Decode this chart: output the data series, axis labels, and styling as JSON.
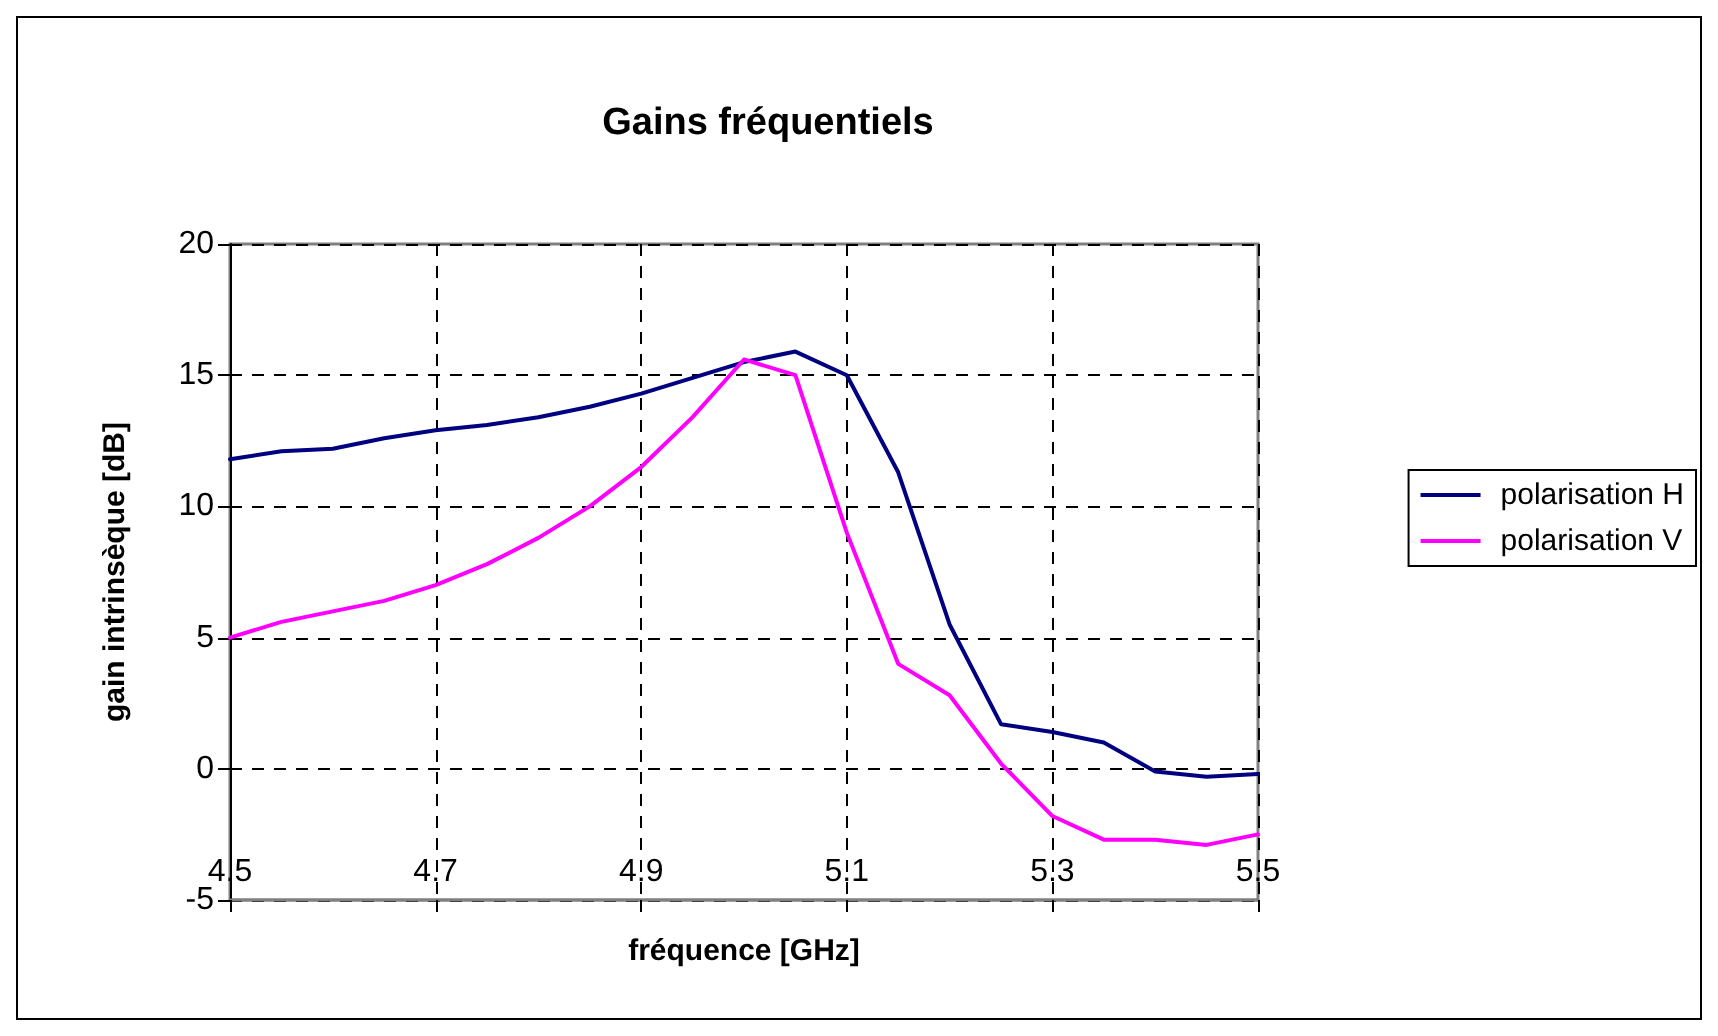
{
  "chart_data": {
    "type": "line",
    "title": "Gains fréquentiels",
    "xlabel": "fréquence [GHz]",
    "ylabel": "gain intrinsèque [dB]",
    "x": [
      4.5,
      4.55,
      4.6,
      4.65,
      4.7,
      4.75,
      4.8,
      4.85,
      4.9,
      4.95,
      5.0,
      5.05,
      5.1,
      5.15,
      5.2,
      5.25,
      5.3,
      5.35,
      5.4,
      5.45,
      5.5
    ],
    "series": [
      {
        "name": "polarisation H",
        "color": "#000080",
        "values": [
          11.8,
          12.1,
          12.2,
          12.6,
          12.9,
          13.1,
          13.4,
          13.8,
          14.3,
          14.9,
          15.5,
          15.9,
          15.0,
          11.3,
          5.5,
          1.7,
          1.4,
          1.0,
          -0.1,
          -0.3,
          -0.2
        ]
      },
      {
        "name": "polarisation V",
        "color": "#ff00ff",
        "values": [
          5.0,
          5.6,
          6.0,
          6.4,
          7.0,
          7.8,
          8.8,
          10.0,
          11.5,
          13.4,
          15.6,
          15.0,
          9.0,
          4.0,
          2.8,
          0.2,
          -1.8,
          -2.7,
          -2.7,
          -2.9,
          -2.5
        ]
      }
    ],
    "xlim": [
      4.5,
      5.5
    ],
    "xticks": [
      4.5,
      4.7,
      4.9,
      5.1,
      5.3,
      5.5
    ],
    "ylim": [
      -5,
      20
    ],
    "yticks": [
      -5,
      0,
      5,
      10,
      15,
      20
    ],
    "grid": true,
    "legend": "right",
    "marker": "none",
    "line_style": "solid"
  }
}
